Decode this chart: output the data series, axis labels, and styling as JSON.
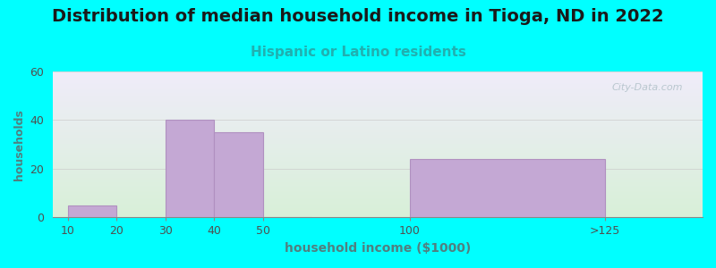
{
  "title": "Distribution of median household income in Tioga, ND in 2022",
  "subtitle": "Hispanic or Latino residents",
  "xlabel": "household income ($1000)",
  "ylabel": "households",
  "background_color": "#00FFFF",
  "bar_color": "#c4a8d4",
  "bar_edge_color": "#b090c0",
  "tick_labels": [
    "10",
    "20",
    "30",
    "40",
    "50",
    "100",
    ">125"
  ],
  "tick_positions": [
    0,
    1,
    2,
    3,
    4,
    7,
    11
  ],
  "bar_lefts": [
    0,
    2,
    3,
    4,
    7
  ],
  "bar_widths": [
    1,
    1,
    1,
    1,
    4
  ],
  "bar_heights": [
    5,
    40,
    35,
    0,
    24
  ],
  "xlim": [
    -0.3,
    13
  ],
  "ylim": [
    0,
    60
  ],
  "yticks": [
    0,
    20,
    40,
    60
  ],
  "title_fontsize": 14,
  "subtitle_fontsize": 11,
  "subtitle_color": "#20b0b0",
  "tick_color": "#505050",
  "ylabel_color": "#508080",
  "xlabel_color": "#508080",
  "watermark": "City-Data.com",
  "gradient_bottom": "#d8f0d8",
  "gradient_top": "#f0ecfa"
}
